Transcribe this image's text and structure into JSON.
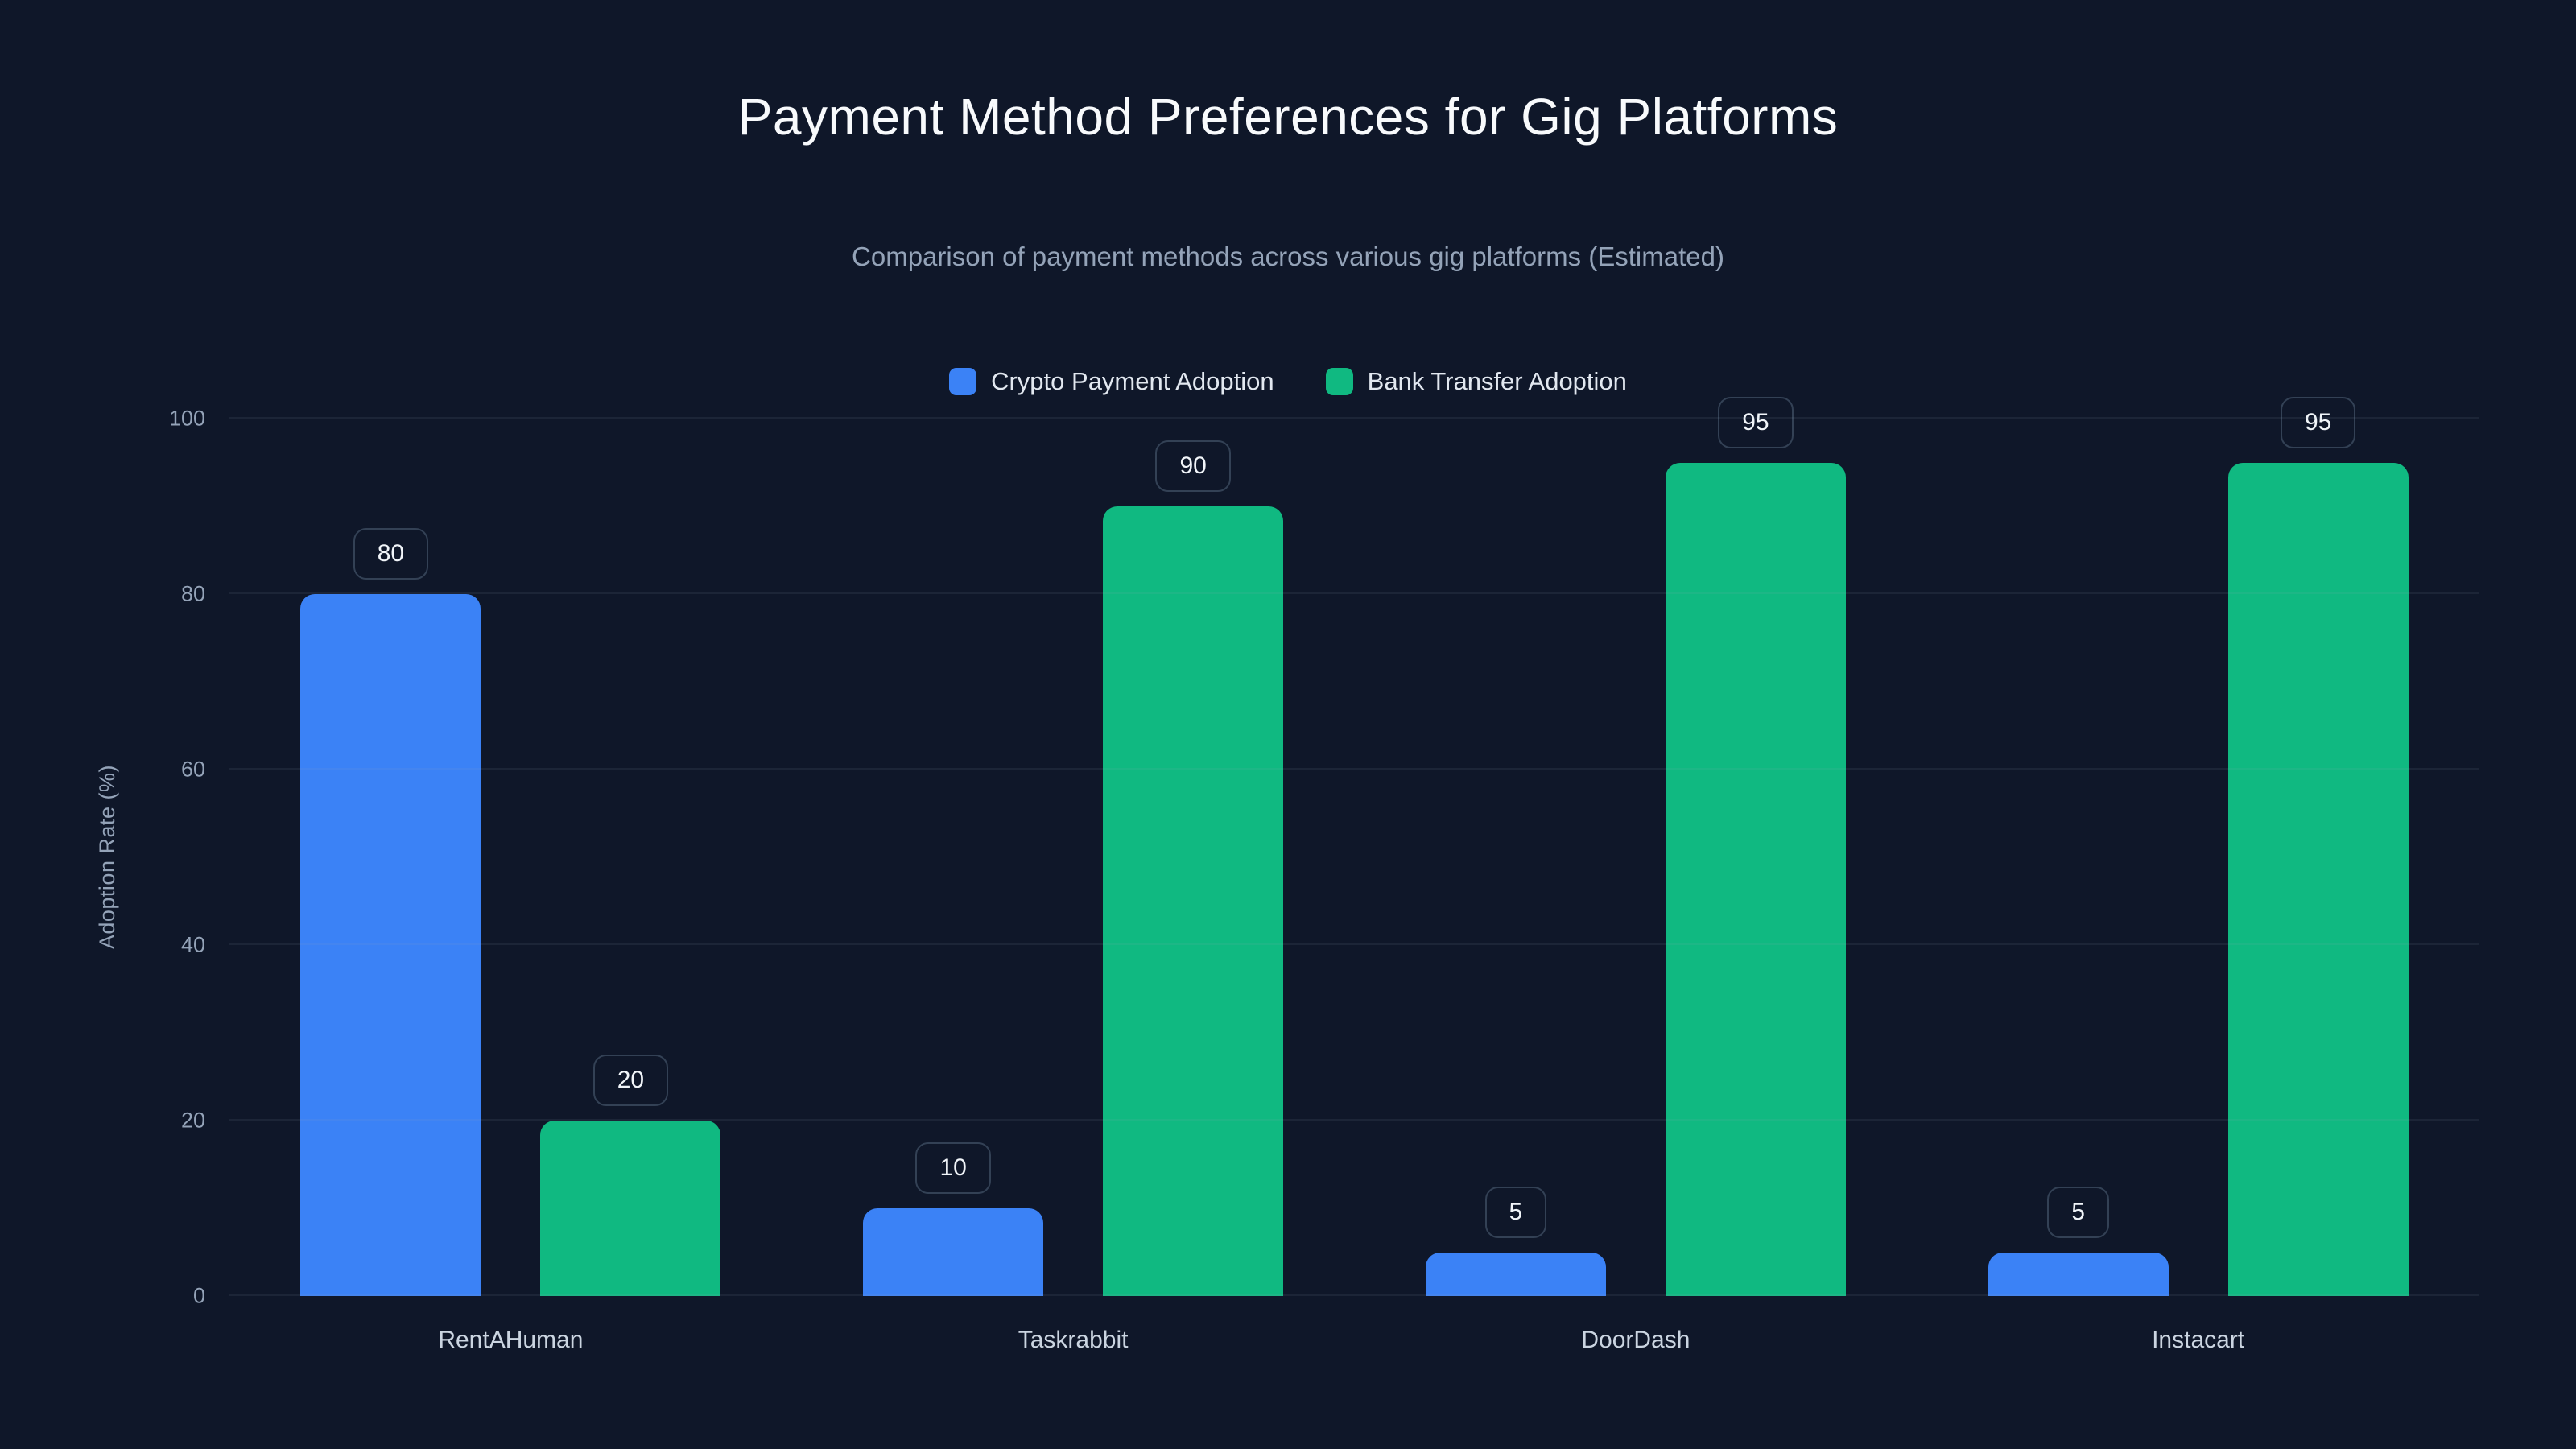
{
  "chart_data": {
    "type": "bar",
    "title": "Payment Method Preferences for Gig Platforms",
    "subtitle": "Comparison of payment methods across various gig platforms (Estimated)",
    "ylabel": "Adoption Rate (%)",
    "xlabel": "",
    "categories": [
      "RentAHuman",
      "Taskrabbit",
      "DoorDash",
      "Instacart"
    ],
    "series": [
      {
        "name": "Crypto Payment Adoption",
        "color": "#3b82f6",
        "values": [
          80,
          10,
          5,
          5
        ]
      },
      {
        "name": "Bank Transfer Adoption",
        "color": "#10b981",
        "values": [
          20,
          90,
          95,
          95
        ]
      }
    ],
    "ylim": [
      0,
      100
    ],
    "yticks": [
      0,
      20,
      40,
      60,
      80,
      100
    ],
    "grid": true,
    "legend_position": "top",
    "value_labels": true
  },
  "colors": {
    "background": "#0f1729",
    "grid": "rgba(148,163,184,0.10)",
    "pill_border": "#334155",
    "text_primary": "#f8fafc",
    "text_muted": "#94a3b8",
    "text_axis": "#cbd5e1"
  }
}
